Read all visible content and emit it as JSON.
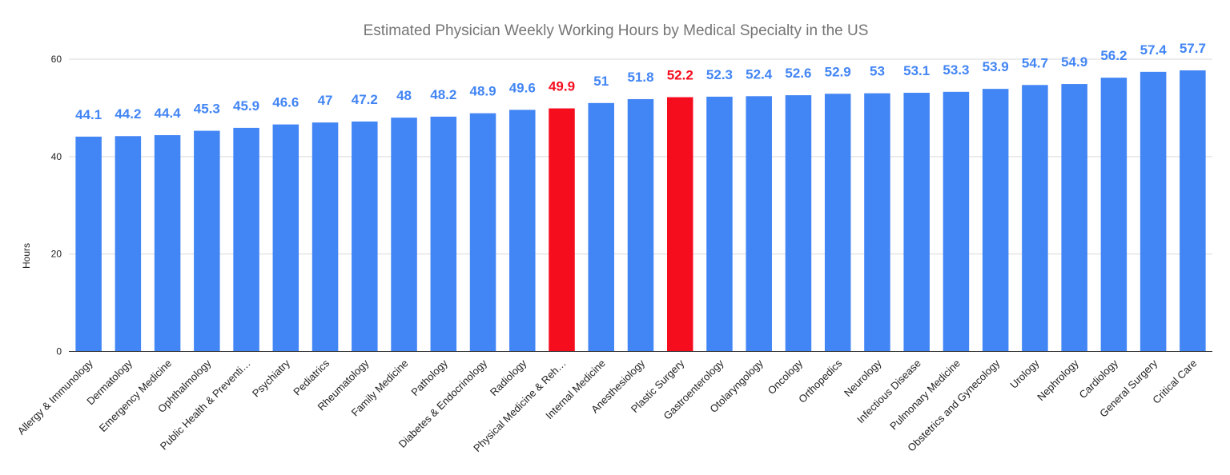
{
  "colors": {
    "default": "#4285f4",
    "highlight": "#f50d1e"
  },
  "chart_data": {
    "type": "bar",
    "title": "Estimated Physician Weekly Working Hours by Medical Specialty in the US",
    "xlabel": "",
    "ylabel": "Hours",
    "ylim": [
      0,
      60
    ],
    "yticks": [
      "0",
      "20",
      "40",
      "60"
    ],
    "grid": true,
    "legend": "none",
    "categories": [
      "Allergy & Immunology",
      "Dermatology",
      "Emergency Medicine",
      "Ophthalmology",
      "Public Health & Preventi…",
      "Psychiatry",
      "Pediatrics",
      "Rheumatology",
      "Family Medicine",
      "Pathology",
      "Diabetes & Endocrinology",
      "Radiology",
      "Physical Medicine & Reh…",
      "Internal Medicine",
      "Anesthesiology",
      "Plastic Surgery",
      "Gastroenterology",
      "Otolaryngology",
      "Oncology",
      "Orthopedics",
      "Neurology",
      "Infectious Disease",
      "Pulmonary Medicine",
      "Obstetrics and Gynecology",
      "Urology",
      "Nephrology",
      "Cardiology",
      "General Surgery",
      "Critical Care"
    ],
    "values": [
      44.1,
      44.2,
      44.4,
      45.3,
      45.9,
      46.6,
      47,
      47.2,
      48,
      48.2,
      48.9,
      49.6,
      49.9,
      51,
      51.8,
      52.2,
      52.3,
      52.4,
      52.6,
      52.9,
      53,
      53.1,
      53.3,
      53.9,
      54.7,
      54.9,
      56.2,
      57.4,
      57.7
    ],
    "data_labels": [
      "44.1",
      "44.2",
      "44.4",
      "45.3",
      "45.9",
      "46.6",
      "47",
      "47.2",
      "48",
      "48.2",
      "48.9",
      "49.6",
      "49.9",
      "51",
      "51.8",
      "52.2",
      "52.3",
      "52.4",
      "52.6",
      "52.9",
      "53",
      "53.1",
      "53.3",
      "53.9",
      "54.7",
      "54.9",
      "56.2",
      "57.4",
      "57.7"
    ],
    "highlighted": [
      "Physical Medicine & Reh…",
      "Plastic Surgery"
    ]
  }
}
